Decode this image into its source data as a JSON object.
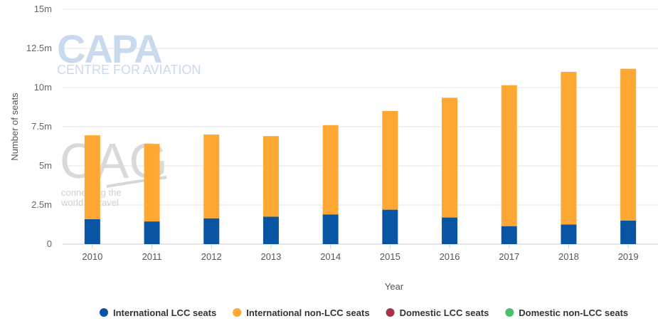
{
  "watermarks": {
    "capa_title": "CAPA",
    "capa_subtitle": "CENTRE FOR AVIATION",
    "cag_title": "CAG",
    "cag_line1": "connecting the",
    "cag_line2": "world of travel"
  },
  "chart_data": {
    "type": "bar",
    "stacked": true,
    "title": "",
    "xlabel": "Year",
    "ylabel": "Number of seats",
    "ylim": [
      0,
      15000000
    ],
    "yticks": [
      0,
      2500000,
      5000000,
      7500000,
      10000000,
      12500000,
      15000000
    ],
    "ytick_labels": [
      "0",
      "2.5m",
      "5m",
      "7.5m",
      "10m",
      "12.5m",
      "15m"
    ],
    "grid": true,
    "legend_position": "bottom",
    "categories": [
      "2010",
      "2011",
      "2012",
      "2013",
      "2014",
      "2015",
      "2016",
      "2017",
      "2018",
      "2019"
    ],
    "series": [
      {
        "name": "International LCC seats",
        "color": "#0a54a4",
        "values": [
          1600000,
          1450000,
          1650000,
          1750000,
          1900000,
          2200000,
          1700000,
          1150000,
          1250000,
          1500000
        ]
      },
      {
        "name": "International non-LCC seats",
        "color": "#ffa733",
        "values": [
          5350000,
          4950000,
          5350000,
          5150000,
          5700000,
          6300000,
          7650000,
          9000000,
          9750000,
          9700000
        ]
      },
      {
        "name": "Domestic LCC seats",
        "color": "#a8334c",
        "values": [
          0,
          0,
          0,
          0,
          0,
          0,
          0,
          0,
          0,
          0
        ]
      },
      {
        "name": "Domestic non-LCC seats",
        "color": "#4cbf6c",
        "values": [
          0,
          0,
          0,
          0,
          0,
          0,
          0,
          0,
          0,
          0
        ]
      }
    ]
  }
}
